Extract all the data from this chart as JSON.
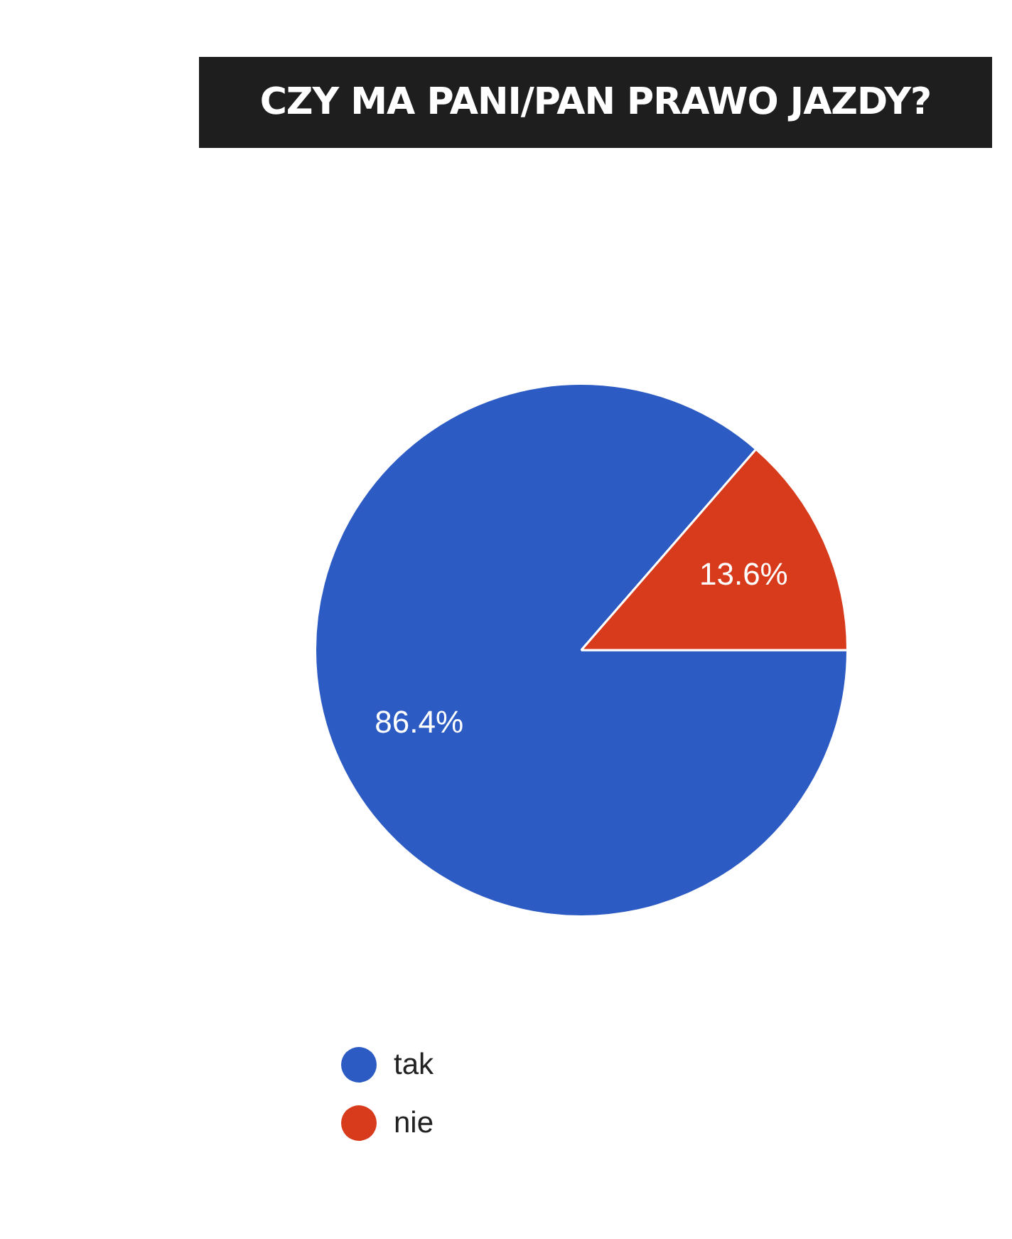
{
  "chart_data": {
    "type": "pie",
    "title": "CZY MA PANI/PAN PRAWO JAZDY?",
    "categories": [
      "tak",
      "nie"
    ],
    "values": [
      86.4,
      13.6
    ],
    "colors": [
      "#2d5bc4",
      "#d83a1c"
    ],
    "value_labels": [
      "86.4%",
      "13.6%"
    ],
    "legend": "bottom left"
  }
}
